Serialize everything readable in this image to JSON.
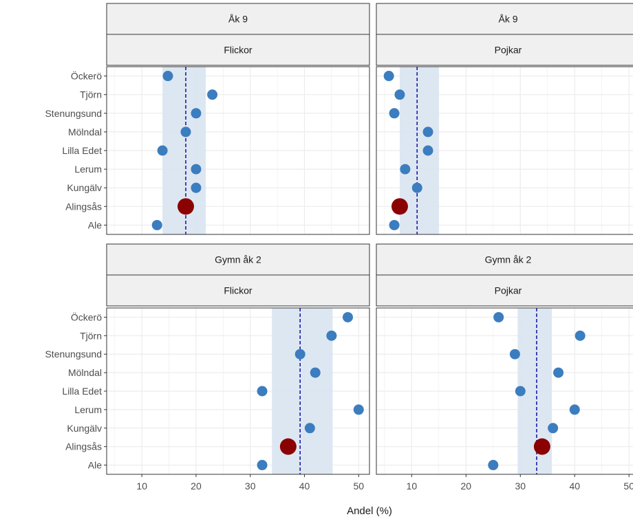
{
  "chart_data": {
    "type": "scatter",
    "xlabel": "Andel (%)",
    "xlim": [
      3.5,
      52
    ],
    "x_ticks": [
      10,
      20,
      30,
      40,
      50
    ],
    "categories": [
      "Öckerö",
      "Tjörn",
      "Stenungsund",
      "Mölndal",
      "Lilla Edet",
      "Lerum",
      "Kungälv",
      "Alingsås",
      "Ale"
    ],
    "highlight": "Alingsås",
    "colors": {
      "point": "#3b7dbf",
      "highlight": "#8b0000",
      "mean_line": "#1a1aa6",
      "band": "#dbe6f1",
      "strip_bg": "#f0f0f0",
      "grid": "#ececec"
    },
    "grid": true,
    "panels": [
      {
        "grade": "Åk 9",
        "gender": "Flickor",
        "mean": 18.1,
        "band": [
          13.8,
          21.8
        ],
        "values": [
          14.8,
          23.0,
          20.0,
          18.1,
          13.8,
          20.0,
          20.0,
          18.1,
          12.8
        ]
      },
      {
        "grade": "Åk 9",
        "gender": "Pojkar",
        "mean": 11.0,
        "band": [
          7.8,
          15.0
        ],
        "values": [
          5.8,
          7.8,
          6.8,
          13.0,
          13.0,
          8.8,
          11.0,
          7.8,
          6.8
        ]
      },
      {
        "grade": "Gymn åk 2",
        "gender": "Flickor",
        "mean": 39.2,
        "band": [
          34.0,
          45.2
        ],
        "values": [
          48.0,
          45.0,
          39.2,
          42.0,
          32.2,
          50.0,
          41.0,
          37.0,
          32.2
        ]
      },
      {
        "grade": "Gymn åk 2",
        "gender": "Pojkar",
        "mean": 33.0,
        "band": [
          29.5,
          35.8
        ],
        "values": [
          26.0,
          41.0,
          29.0,
          37.0,
          30.0,
          40.0,
          36.0,
          34.0,
          25.0
        ]
      }
    ]
  }
}
